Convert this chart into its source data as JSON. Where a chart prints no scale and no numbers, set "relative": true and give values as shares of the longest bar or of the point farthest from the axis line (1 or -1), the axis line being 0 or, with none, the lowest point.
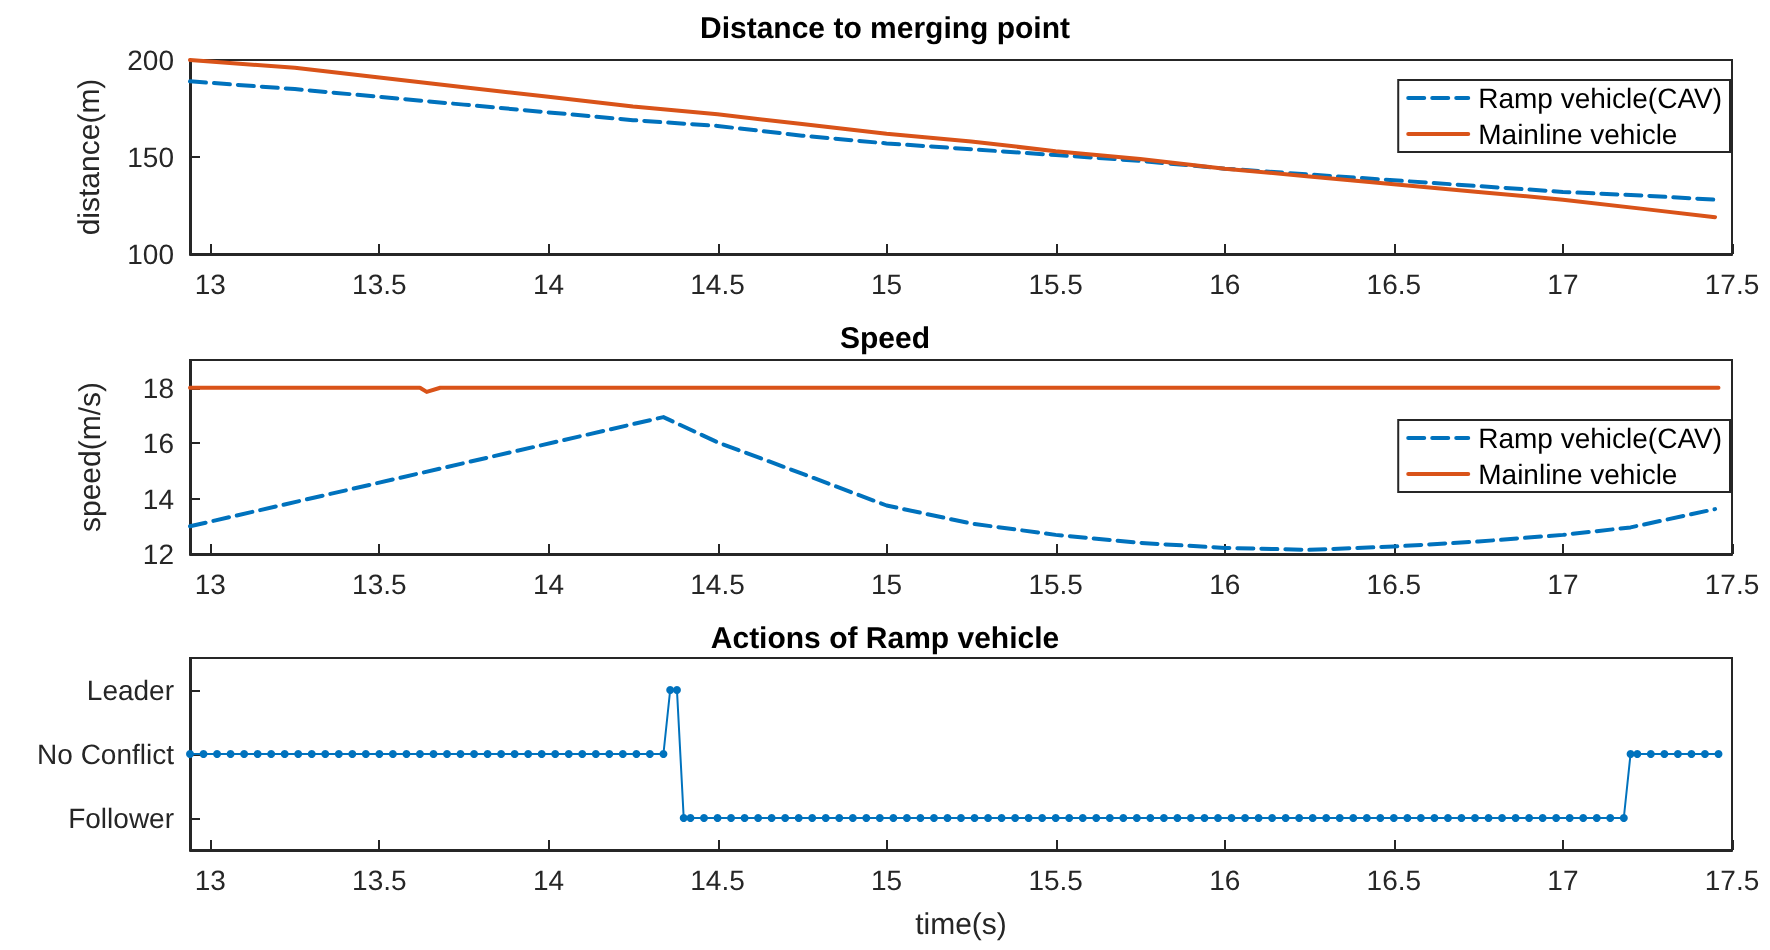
{
  "chart_data": [
    {
      "type": "line",
      "title": "Distance to merging point",
      "ylabel": "distance(m)",
      "xlim": [
        12.94,
        17.5
      ],
      "xticks": [
        13,
        13.5,
        14,
        14.5,
        15,
        15.5,
        16,
        16.5,
        17,
        17.5
      ],
      "ylim": [
        100,
        200
      ],
      "yticks": [
        100,
        150,
        200
      ],
      "grid": false,
      "legend": "top right",
      "series": [
        {
          "name": "Ramp vehicle(CAV)",
          "color": "#0072bd",
          "line_style": "dashed",
          "x": [
            12.94,
            13.25,
            13.5,
            13.75,
            14,
            14.25,
            14.5,
            14.75,
            15,
            15.25,
            15.5,
            15.75,
            16,
            16.25,
            16.5,
            16.75,
            17,
            17.25,
            17.45
          ],
          "values": [
            189,
            185,
            181,
            177,
            173,
            169,
            166,
            161,
            157,
            154,
            151,
            148,
            144,
            141,
            138,
            135,
            132,
            130,
            128
          ]
        },
        {
          "name": "Mainline vehicle",
          "color": "#d95319",
          "line_style": "solid",
          "x": [
            12.94,
            13.25,
            13.5,
            13.75,
            14,
            14.25,
            14.5,
            14.75,
            15,
            15.25,
            15.5,
            15.75,
            16,
            16.25,
            16.5,
            16.75,
            17,
            17.25,
            17.45
          ],
          "values": [
            200,
            196,
            191,
            186,
            181,
            176,
            172,
            167,
            162,
            158,
            153,
            149,
            144,
            140,
            136,
            132,
            128,
            123,
            119
          ]
        }
      ]
    },
    {
      "type": "line",
      "title": "Speed",
      "ylabel": "speed(m/s)",
      "xlim": [
        12.94,
        17.5
      ],
      "xticks": [
        13,
        13.5,
        14,
        14.5,
        15,
        15.5,
        16,
        16.5,
        17,
        17.5
      ],
      "ylim": [
        12,
        19
      ],
      "yticks": [
        12,
        14,
        16,
        18
      ],
      "grid": false,
      "legend": "right",
      "series": [
        {
          "name": "Ramp vehicle(CAV)",
          "color": "#0072bd",
          "line_style": "dashed",
          "x": [
            12.94,
            14.34,
            14.5,
            14.75,
            15,
            15.25,
            15.5,
            15.75,
            16,
            16.25,
            16.5,
            16.75,
            17,
            17.2,
            17.45
          ],
          "values": [
            13,
            16.94,
            16.03,
            14.9,
            13.75,
            13.1,
            12.69,
            12.4,
            12.22,
            12.15,
            12.27,
            12.45,
            12.69,
            12.96,
            13.62
          ]
        },
        {
          "name": "Mainline vehicle",
          "color": "#d95319",
          "line_style": "solid",
          "x": [
            12.94,
            13.62,
            13.64,
            13.68,
            17.46
          ],
          "values": [
            18,
            18,
            17.85,
            18,
            18
          ]
        }
      ]
    },
    {
      "type": "line",
      "title": "Actions of Ramp vehicle",
      "xlabel": "time(s)",
      "xlim": [
        12.94,
        17.5
      ],
      "xticks": [
        13,
        13.5,
        14,
        14.5,
        15,
        15.5,
        16,
        16.5,
        17,
        17.5
      ],
      "relative": true,
      "y_categories": [
        "Leader",
        "No Conflict",
        "Follower"
      ],
      "grid": false,
      "legend": false,
      "marker": "circle",
      "series": [
        {
          "color": "#0072bd",
          "line_style": "solid",
          "x": [
            12.94,
            12.98,
            13.02,
            13.06,
            13.1,
            13.14,
            13.18,
            13.22,
            13.26,
            13.3,
            13.34,
            13.38,
            13.42,
            13.46,
            13.5,
            13.54,
            13.58,
            13.62,
            13.66,
            13.7,
            13.74,
            13.78,
            13.82,
            13.86,
            13.9,
            13.94,
            13.98,
            14.02,
            14.06,
            14.1,
            14.14,
            14.18,
            14.22,
            14.26,
            14.3,
            14.34,
            14.36,
            14.38,
            14.4,
            14.42,
            14.46,
            14.5,
            14.54,
            14.58,
            14.62,
            14.66,
            14.7,
            14.74,
            14.78,
            14.82,
            14.86,
            14.9,
            14.94,
            14.98,
            15.02,
            15.06,
            15.1,
            15.14,
            15.18,
            15.22,
            15.26,
            15.3,
            15.34,
            15.38,
            15.42,
            15.46,
            15.5,
            15.54,
            15.58,
            15.62,
            15.66,
            15.7,
            15.74,
            15.78,
            15.82,
            15.86,
            15.9,
            15.94,
            15.98,
            16.02,
            16.06,
            16.1,
            16.14,
            16.18,
            16.22,
            16.26,
            16.3,
            16.34,
            16.38,
            16.42,
            16.46,
            16.5,
            16.54,
            16.58,
            16.62,
            16.66,
            16.7,
            16.74,
            16.78,
            16.82,
            16.86,
            16.9,
            16.94,
            16.98,
            17.02,
            17.06,
            17.1,
            17.14,
            17.18,
            17.2,
            17.22,
            17.26,
            17.3,
            17.34,
            17.38,
            17.42,
            17.46
          ],
          "values": [
            0.6,
            0.6,
            0.6,
            0.6,
            0.6,
            0.6,
            0.6,
            0.6,
            0.6,
            0.6,
            0.6,
            0.6,
            0.6,
            0.6,
            0.6,
            0.6,
            0.6,
            0.6,
            0.6,
            0.6,
            0.6,
            0.6,
            0.6,
            0.6,
            0.6,
            0.6,
            0.6,
            0.6,
            0.6,
            0.6,
            0.6,
            0.6,
            0.6,
            0.6,
            0.6,
            0.6,
            1,
            1,
            0.2,
            0.2,
            0.2,
            0.2,
            0.2,
            0.2,
            0.2,
            0.2,
            0.2,
            0.2,
            0.2,
            0.2,
            0.2,
            0.2,
            0.2,
            0.2,
            0.2,
            0.2,
            0.2,
            0.2,
            0.2,
            0.2,
            0.2,
            0.2,
            0.2,
            0.2,
            0.2,
            0.2,
            0.2,
            0.2,
            0.2,
            0.2,
            0.2,
            0.2,
            0.2,
            0.2,
            0.2,
            0.2,
            0.2,
            0.2,
            0.2,
            0.2,
            0.2,
            0.2,
            0.2,
            0.2,
            0.2,
            0.2,
            0.2,
            0.2,
            0.2,
            0.2,
            0.2,
            0.2,
            0.2,
            0.2,
            0.2,
            0.2,
            0.2,
            0.2,
            0.2,
            0.2,
            0.2,
            0.2,
            0.2,
            0.2,
            0.2,
            0.2,
            0.2,
            0.2,
            0.2,
            0.6,
            0.6,
            0.6,
            0.6,
            0.6,
            0.6,
            0.6,
            0.6
          ]
        }
      ]
    }
  ]
}
